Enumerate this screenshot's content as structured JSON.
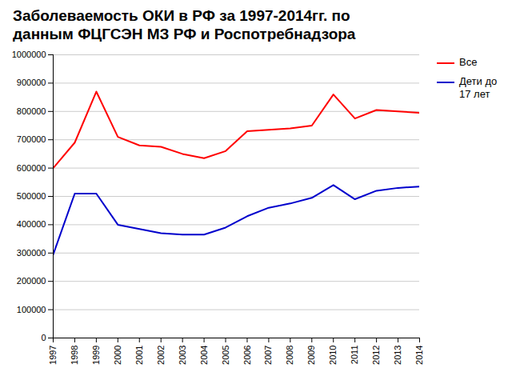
{
  "chart_data": {
    "type": "line",
    "title": "Заболеваемость ОКИ в РФ за 1997-2014гг. по\nданным ФЦГСЭН МЗ РФ и Роспотребнадзора",
    "x": [
      1997,
      1998,
      1999,
      2000,
      2001,
      2002,
      2003,
      2004,
      2005,
      2006,
      2007,
      2008,
      2009,
      2010,
      2011,
      2012,
      2013,
      2014
    ],
    "series": [
      {
        "name": "Все",
        "color": "#ff0000",
        "values": [
          600000,
          690000,
          870000,
          710000,
          680000,
          675000,
          650000,
          635000,
          660000,
          730000,
          735000,
          740000,
          750000,
          860000,
          775000,
          805000,
          800000,
          795000
        ]
      },
      {
        "name": "Дети до\n17 лет",
        "color": "#0000cc",
        "values": [
          295000,
          510000,
          510000,
          400000,
          385000,
          370000,
          365000,
          365000,
          390000,
          430000,
          460000,
          475000,
          495000,
          540000,
          490000,
          520000,
          530000,
          535000
        ]
      }
    ],
    "xlim": [
      1997,
      2014
    ],
    "xticks": [
      1997,
      1998,
      1999,
      2000,
      2001,
      2002,
      2003,
      2004,
      2005,
      2006,
      2007,
      2008,
      2009,
      2010,
      2011,
      2012,
      2013,
      2014
    ],
    "ylim": [
      0,
      1000000
    ],
    "yticks": [
      0,
      100000,
      200000,
      300000,
      400000,
      500000,
      600000,
      700000,
      800000,
      900000,
      1000000
    ],
    "grid": "y",
    "legend": "right"
  }
}
